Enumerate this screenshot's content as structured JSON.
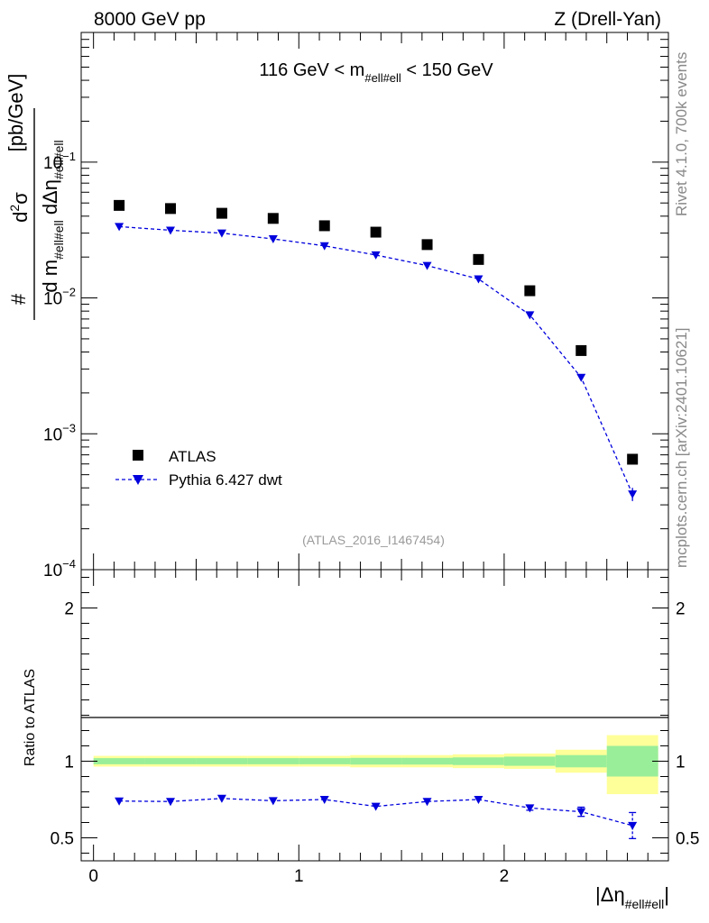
{
  "header": {
    "left": "8000 GeV pp",
    "right": "Z (Drell-Yan)"
  },
  "side_labels": {
    "rivet": "Rivet 4.1.0,  700k events",
    "mcplots": "mcplots.cern.ch [arXiv:2401.10621]"
  },
  "chart_data": [
    {
      "type": "scatter",
      "panel": "main",
      "title": "116 GeV < m_{#ell#ell} < 150 GeV",
      "title_parts": {
        "pre": "116 GeV < m",
        "sub": "#ell#ell",
        "post": " < 150 GeV"
      },
      "ylabel": "# d²σ / d m_{#ell#ell} dΔη_{#ell#ell} [pb/GeV]",
      "ylabel_parts": {
        "hash": "#",
        "num": "d",
        "num_sup": "2",
        "num_sigma": "σ",
        "den_a": "d m",
        "den_a_sub": "#ell#ell",
        "den_b": " dΔη",
        "den_b_sub": "#ell#ell",
        "unit": "[pb/GeV]"
      },
      "yscale": "log",
      "ylim": [
        0.0001,
        0.9
      ],
      "xlim": [
        -0.06,
        2.8
      ],
      "ytick_labels": [
        {
          "value": 0.1,
          "base": "10",
          "exp": "−1"
        },
        {
          "value": 0.01,
          "base": "10",
          "exp": "−2"
        },
        {
          "value": 0.001,
          "base": "10",
          "exp": "−3"
        },
        {
          "value": 0.0001,
          "base": "10",
          "exp": "−4"
        }
      ],
      "x": [
        0.125,
        0.375,
        0.625,
        0.875,
        1.125,
        1.375,
        1.625,
        1.875,
        2.125,
        2.375,
        2.625
      ],
      "series": [
        {
          "name": "ATLAS",
          "marker": "square",
          "color": "#000000",
          "values": [
            0.048,
            0.0455,
            0.042,
            0.0385,
            0.034,
            0.0305,
            0.0247,
            0.0192,
            0.0113,
            0.0041,
            0.00065
          ]
        },
        {
          "name": "Pythia 6.427 dwt",
          "marker": "triangle-down",
          "line": "dashed",
          "color": "#0000dd",
          "values": [
            0.0335,
            0.0315,
            0.03,
            0.0272,
            0.0242,
            0.0207,
            0.0173,
            0.0138,
            0.0075,
            0.0026,
            0.00036
          ],
          "err_low": [
            0,
            0,
            0,
            0,
            0,
            0,
            0,
            0,
            0,
            0,
            4e-05
          ],
          "err_high": [
            0,
            0,
            0,
            0,
            0,
            0,
            0,
            0,
            0,
            0,
            4e-05
          ]
        }
      ],
      "legend": {
        "placement": "bottom-left",
        "entries": [
          "ATLAS",
          "Pythia 6.427 dwt"
        ]
      },
      "watermark": "(ATLAS_2016_I1467454)"
    },
    {
      "type": "scatter",
      "panel": "ratio",
      "ylabel": "Ratio to ATLAS",
      "xlabel_parts": {
        "pre": "|Δη",
        "sub": "#ell#ell",
        "post": "|"
      },
      "ylim": [
        0.35,
        2.25
      ],
      "xlim": [
        -0.06,
        2.8
      ],
      "ytick_labels": [
        "0.5",
        "1",
        "2"
      ],
      "ytick_values": [
        0.5,
        1,
        2
      ],
      "xtick_labels": [
        "0",
        "1",
        "2"
      ],
      "xtick_values": [
        0,
        1,
        2
      ],
      "bin_edges": [
        0,
        0.25,
        0.5,
        0.75,
        1.0,
        1.25,
        1.5,
        1.75,
        2.0,
        2.25,
        2.5,
        2.75
      ],
      "band_yellow": {
        "lo": [
          0.965,
          0.965,
          0.965,
          0.965,
          0.965,
          0.96,
          0.96,
          0.955,
          0.95,
          0.925,
          0.785
        ],
        "hi": [
          1.035,
          1.035,
          1.035,
          1.035,
          1.035,
          1.04,
          1.04,
          1.045,
          1.05,
          1.075,
          1.17
        ]
      },
      "band_green": {
        "lo": [
          0.98,
          0.98,
          0.98,
          0.98,
          0.98,
          0.978,
          0.978,
          0.975,
          0.97,
          0.96,
          0.9
        ],
        "hi": [
          1.02,
          1.02,
          1.02,
          1.02,
          1.02,
          1.022,
          1.022,
          1.025,
          1.03,
          1.04,
          1.1
        ]
      },
      "x": [
        0.125,
        0.375,
        0.625,
        0.875,
        1.125,
        1.375,
        1.625,
        1.875,
        2.125,
        2.375,
        2.625
      ],
      "series": [
        {
          "name": "Pythia 6.427 dwt",
          "color": "#0000dd",
          "values": [
            0.74,
            0.737,
            0.757,
            0.742,
            0.75,
            0.705,
            0.737,
            0.75,
            0.695,
            0.67,
            0.58
          ],
          "err": [
            0.005,
            0.005,
            0.005,
            0.005,
            0.005,
            0.005,
            0.005,
            0.006,
            0.015,
            0.03,
            0.085
          ]
        }
      ]
    }
  ]
}
